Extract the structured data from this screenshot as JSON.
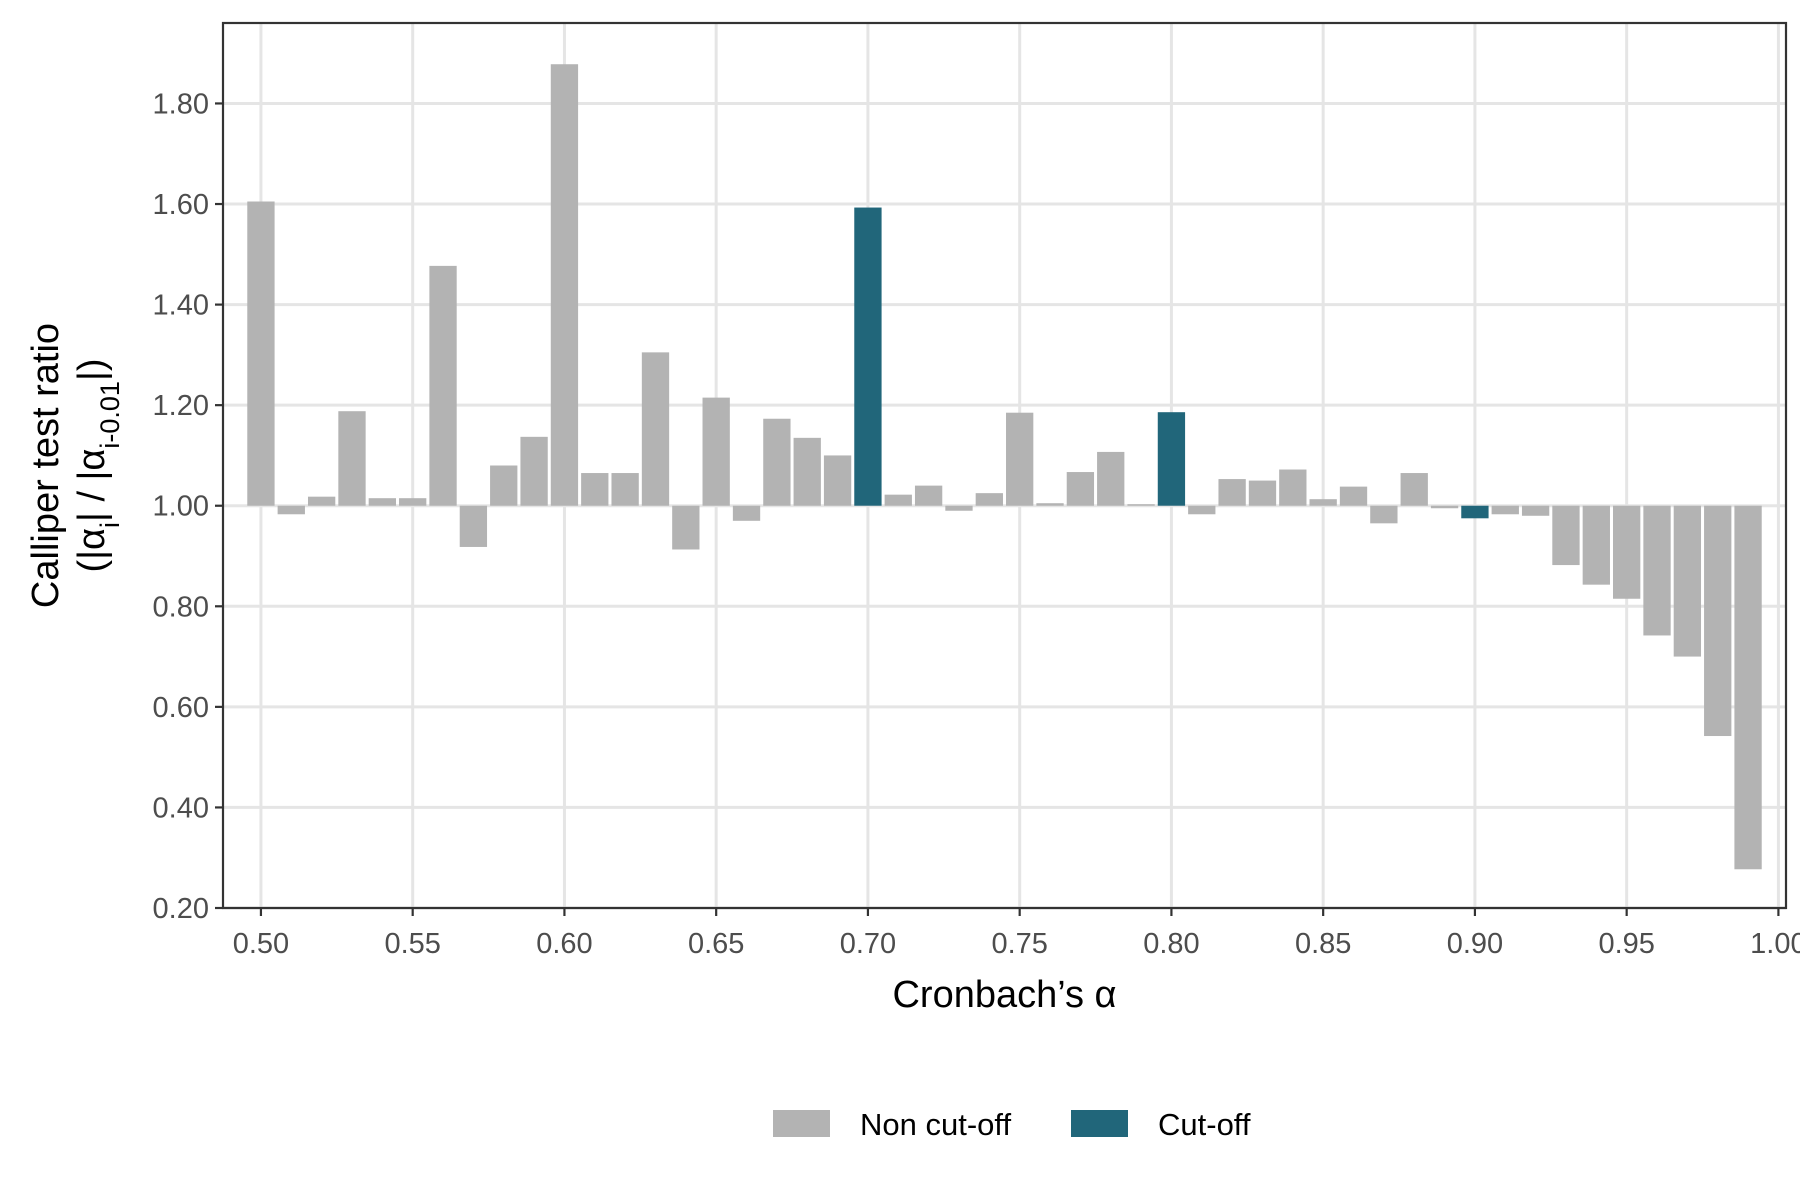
{
  "chart_data": {
    "type": "bar",
    "xlabel": "Cronbach’s α",
    "ylabel": {
      "line1": "Calliper test ratio",
      "line2_prefix": "(|α",
      "line2_sub1": "i",
      "line2_mid": "| / |α",
      "line2_sub2": "i-0.01",
      "line2_suffix": "|)"
    },
    "baseline": 1.0,
    "xlim": [
      0.4875,
      1.0025
    ],
    "ylim": [
      0.2,
      1.96
    ],
    "x_ticks": [
      "0.50",
      "0.55",
      "0.60",
      "0.65",
      "0.70",
      "0.75",
      "0.80",
      "0.85",
      "0.90",
      "0.95",
      "1.00"
    ],
    "x_tick_values": [
      0.5,
      0.55,
      0.6,
      0.65,
      0.7,
      0.75,
      0.8,
      0.85,
      0.9,
      0.95,
      1.0
    ],
    "y_ticks": [
      "0.20",
      "0.40",
      "0.60",
      "0.80",
      "1.00",
      "1.20",
      "1.40",
      "1.60",
      "1.80"
    ],
    "y_tick_values": [
      0.2,
      0.4,
      0.6,
      0.8,
      1.0,
      1.2,
      1.4,
      1.6,
      1.8
    ],
    "grid": true,
    "legend_position": "bottom",
    "colors": {
      "Non cut-off": "#b3b3b3",
      "Cut-off": "#21667a"
    },
    "legend": [
      {
        "label": "Non cut-off",
        "color": "#b3b3b3"
      },
      {
        "label": "Cut-off",
        "color": "#21667a"
      }
    ],
    "bars": [
      {
        "x": 0.5,
        "y": 1.605,
        "group": "Non cut-off"
      },
      {
        "x": 0.51,
        "y": 0.983,
        "group": "Non cut-off"
      },
      {
        "x": 0.52,
        "y": 1.018,
        "group": "Non cut-off"
      },
      {
        "x": 0.53,
        "y": 1.188,
        "group": "Non cut-off"
      },
      {
        "x": 0.54,
        "y": 1.015,
        "group": "Non cut-off"
      },
      {
        "x": 0.55,
        "y": 1.015,
        "group": "Non cut-off"
      },
      {
        "x": 0.56,
        "y": 1.477,
        "group": "Non cut-off"
      },
      {
        "x": 0.57,
        "y": 0.918,
        "group": "Non cut-off"
      },
      {
        "x": 0.58,
        "y": 1.08,
        "group": "Non cut-off"
      },
      {
        "x": 0.59,
        "y": 1.137,
        "group": "Non cut-off"
      },
      {
        "x": 0.6,
        "y": 1.878,
        "group": "Non cut-off"
      },
      {
        "x": 0.61,
        "y": 1.065,
        "group": "Non cut-off"
      },
      {
        "x": 0.62,
        "y": 1.065,
        "group": "Non cut-off"
      },
      {
        "x": 0.63,
        "y": 1.305,
        "group": "Non cut-off"
      },
      {
        "x": 0.64,
        "y": 0.913,
        "group": "Non cut-off"
      },
      {
        "x": 0.65,
        "y": 1.215,
        "group": "Non cut-off"
      },
      {
        "x": 0.66,
        "y": 0.97,
        "group": "Non cut-off"
      },
      {
        "x": 0.67,
        "y": 1.173,
        "group": "Non cut-off"
      },
      {
        "x": 0.68,
        "y": 1.135,
        "group": "Non cut-off"
      },
      {
        "x": 0.69,
        "y": 1.1,
        "group": "Non cut-off"
      },
      {
        "x": 0.7,
        "y": 1.593,
        "group": "Cut-off"
      },
      {
        "x": 0.71,
        "y": 1.022,
        "group": "Non cut-off"
      },
      {
        "x": 0.72,
        "y": 1.04,
        "group": "Non cut-off"
      },
      {
        "x": 0.73,
        "y": 0.99,
        "group": "Non cut-off"
      },
      {
        "x": 0.74,
        "y": 1.025,
        "group": "Non cut-off"
      },
      {
        "x": 0.75,
        "y": 1.185,
        "group": "Non cut-off"
      },
      {
        "x": 0.76,
        "y": 1.005,
        "group": "Non cut-off"
      },
      {
        "x": 0.77,
        "y": 1.067,
        "group": "Non cut-off"
      },
      {
        "x": 0.78,
        "y": 1.107,
        "group": "Non cut-off"
      },
      {
        "x": 0.79,
        "y": 1.003,
        "group": "Non cut-off"
      },
      {
        "x": 0.8,
        "y": 1.186,
        "group": "Cut-off"
      },
      {
        "x": 0.81,
        "y": 0.983,
        "group": "Non cut-off"
      },
      {
        "x": 0.82,
        "y": 1.053,
        "group": "Non cut-off"
      },
      {
        "x": 0.83,
        "y": 1.05,
        "group": "Non cut-off"
      },
      {
        "x": 0.84,
        "y": 1.072,
        "group": "Non cut-off"
      },
      {
        "x": 0.85,
        "y": 1.013,
        "group": "Non cut-off"
      },
      {
        "x": 0.86,
        "y": 1.038,
        "group": "Non cut-off"
      },
      {
        "x": 0.87,
        "y": 0.965,
        "group": "Non cut-off"
      },
      {
        "x": 0.88,
        "y": 1.065,
        "group": "Non cut-off"
      },
      {
        "x": 0.89,
        "y": 0.995,
        "group": "Non cut-off"
      },
      {
        "x": 0.9,
        "y": 0.975,
        "group": "Cut-off"
      },
      {
        "x": 0.91,
        "y": 0.983,
        "group": "Non cut-off"
      },
      {
        "x": 0.92,
        "y": 0.98,
        "group": "Non cut-off"
      },
      {
        "x": 0.93,
        "y": 0.882,
        "group": "Non cut-off"
      },
      {
        "x": 0.94,
        "y": 0.843,
        "group": "Non cut-off"
      },
      {
        "x": 0.95,
        "y": 0.815,
        "group": "Non cut-off"
      },
      {
        "x": 0.96,
        "y": 0.742,
        "group": "Non cut-off"
      },
      {
        "x": 0.97,
        "y": 0.7,
        "group": "Non cut-off"
      },
      {
        "x": 0.98,
        "y": 0.542,
        "group": "Non cut-off"
      },
      {
        "x": 0.99,
        "y": 0.277,
        "group": "Non cut-off"
      }
    ]
  }
}
